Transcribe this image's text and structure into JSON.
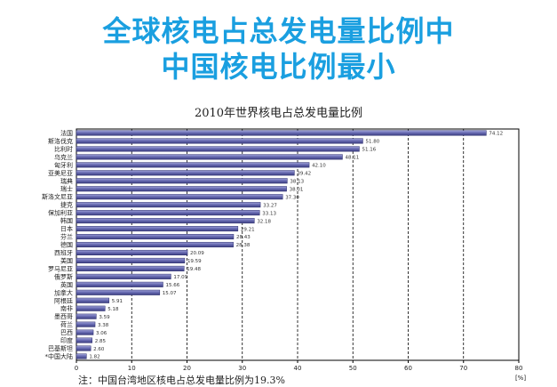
{
  "headline": {
    "line1": "全球核电占总发电量比例中",
    "line2": "中国核电比例最小"
  },
  "colors": {
    "headline": "#1a9fe0",
    "bar_fill": "#6a6db4",
    "bar_dark": "#3b3d80",
    "grid": "#000000"
  },
  "chart_data": {
    "type": "bar",
    "orientation": "horizontal",
    "title": "2010年世界核电占总发电量比例",
    "xlabel": "",
    "ylabel": "",
    "unit_label": "[%]",
    "xlim": [
      0,
      80
    ],
    "x_ticks": [
      "0",
      "10",
      "20",
      "30",
      "40",
      "50",
      "60",
      "70",
      "80"
    ],
    "grid": "vertical",
    "categories": [
      "法国",
      "斯洛伐克",
      "比利时",
      "乌克兰",
      "匈牙利",
      "亚美尼亚",
      "瑞典",
      "瑞士",
      "斯洛文尼亚",
      "捷克",
      "保加利亚",
      "韩国",
      "日本",
      "芬兰",
      "德国",
      "西班牙",
      "美国",
      "罗马尼亚",
      "俄罗斯",
      "英国",
      "加拿大",
      "阿根廷",
      "南非",
      "墨西哥",
      "荷兰",
      "巴西",
      "印度",
      "巴基斯坦",
      "*中国大陆"
    ],
    "values": [
      74.12,
      51.8,
      51.16,
      48.11,
      42.1,
      39.42,
      38.13,
      38.01,
      37.3,
      33.27,
      33.13,
      32.18,
      29.21,
      28.43,
      28.38,
      20.09,
      19.59,
      19.48,
      17.09,
      15.66,
      15.07,
      5.91,
      5.18,
      3.59,
      3.38,
      3.06,
      2.85,
      2.6,
      1.82
    ],
    "value_labels": [
      "74.12",
      "51.80",
      "51.16",
      "48.11",
      "42.10",
      "39.42",
      "38.13",
      "38.01",
      "37.30",
      "33.27",
      "33.13",
      "32.18",
      "29.21",
      "28.43",
      "28.38",
      "20.09",
      "19.59",
      "19.48",
      "17.09",
      "15.66",
      "15.07",
      "5.91",
      "5.18",
      "3.59",
      "3.38",
      "3.06",
      "2.85",
      "2.60",
      "1.82"
    ]
  },
  "note": "注：中国台湾地区核电占总发电量比例为19.3%"
}
